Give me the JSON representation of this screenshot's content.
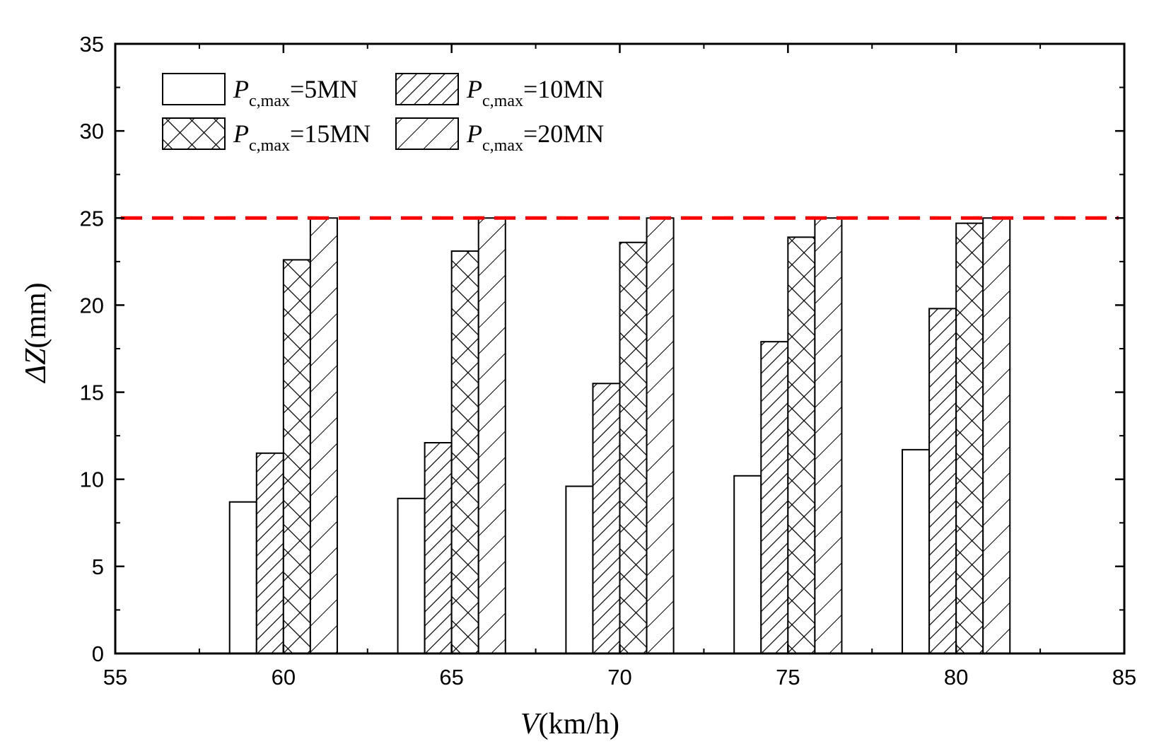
{
  "chart_data": {
    "type": "bar",
    "title": "",
    "xlabel": {
      "var": "V",
      "unit": "(km/h)"
    },
    "ylabel": {
      "var": "ΔZ",
      "unit": "(mm)"
    },
    "xlim": [
      55,
      85
    ],
    "ylim": [
      0,
      35
    ],
    "x_ticks": [
      "55",
      "60",
      "65",
      "70",
      "75",
      "80",
      "85"
    ],
    "y_ticks": [
      "0",
      "5",
      "10",
      "15",
      "20",
      "25",
      "30",
      "35"
    ],
    "categories": [
      60,
      65,
      70,
      75,
      80
    ],
    "series": [
      {
        "name": "Pc,max=5MN",
        "legend": {
          "var": "P",
          "sub": "c,max",
          "rest": "=5MN"
        },
        "pattern": "blank",
        "values": [
          8.7,
          8.9,
          9.6,
          10.2,
          11.7
        ]
      },
      {
        "name": "Pc,max=10MN",
        "legend": {
          "var": "P",
          "sub": "c,max",
          "rest": "=10MN"
        },
        "pattern": "dense-diagonal",
        "values": [
          11.5,
          12.1,
          15.5,
          17.9,
          19.8
        ]
      },
      {
        "name": "Pc,max=15MN",
        "legend": {
          "var": "P",
          "sub": "c,max",
          "rest": "=15MN"
        },
        "pattern": "crosshatch",
        "values": [
          22.6,
          23.1,
          23.6,
          23.9,
          24.7
        ]
      },
      {
        "name": "Pc,max=20MN",
        "legend": {
          "var": "P",
          "sub": "c,max",
          "rest": "=20MN"
        },
        "pattern": "sparse-diagonal",
        "values": [
          25.0,
          25.0,
          25.0,
          25.0,
          25.0
        ]
      }
    ],
    "reference_line": {
      "y": 25,
      "style": "dashed",
      "color": "#ff0000"
    },
    "legend_position": "top-left",
    "grid": false
  }
}
